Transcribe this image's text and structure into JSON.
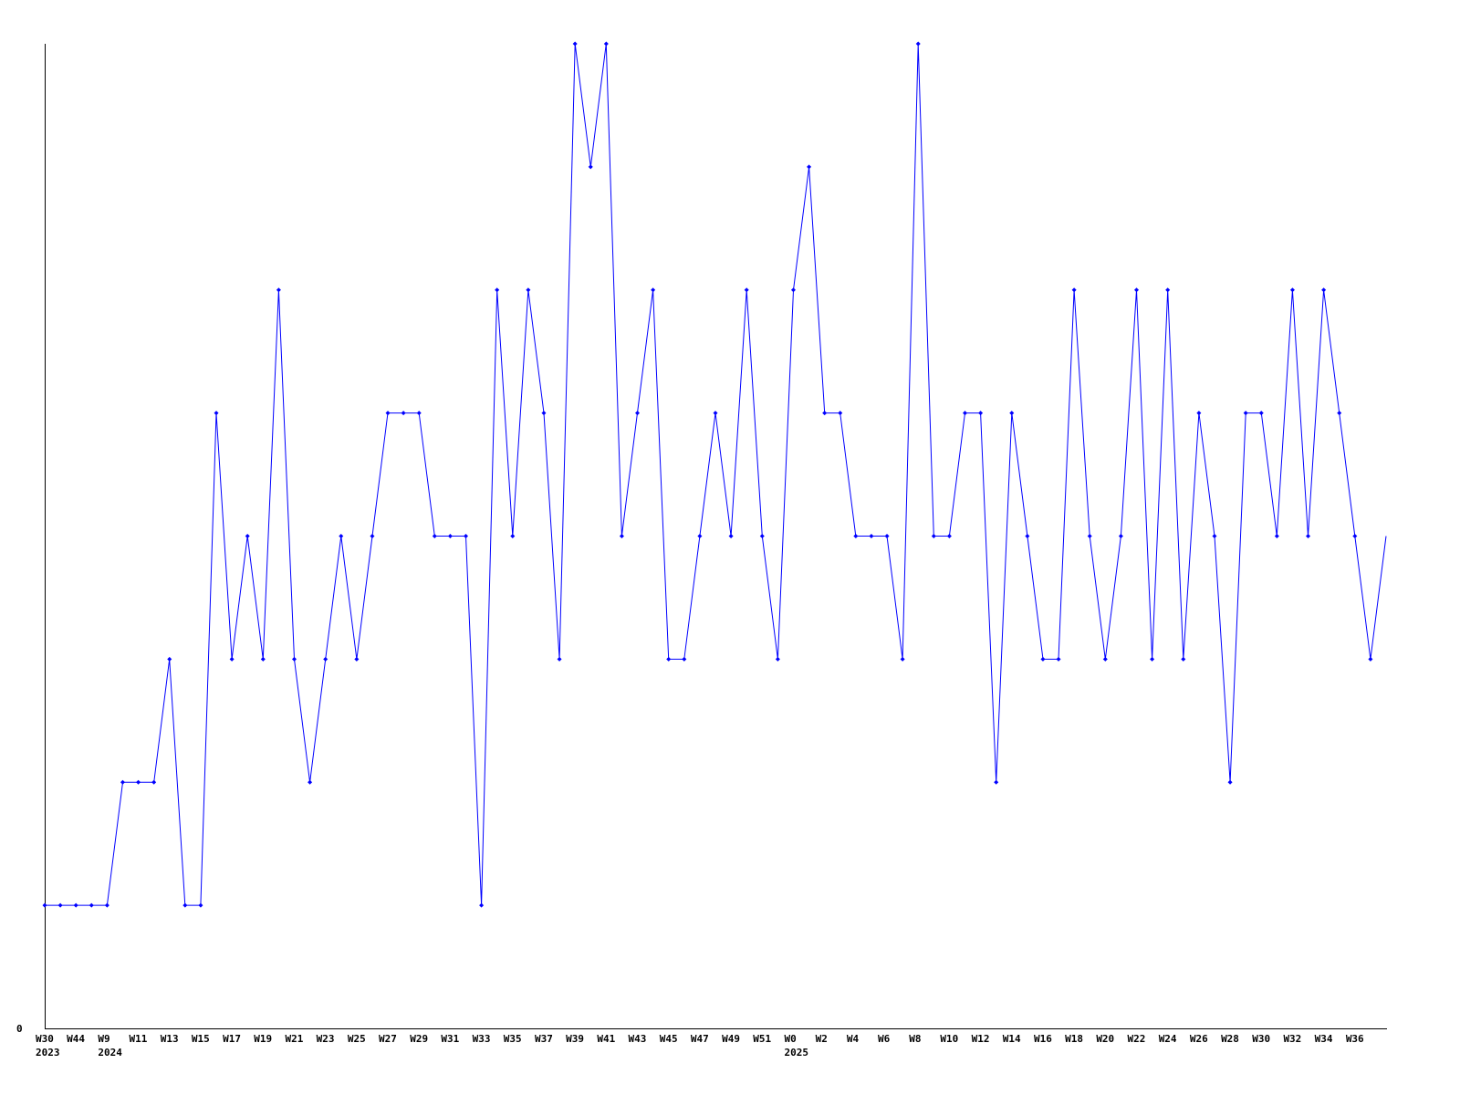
{
  "chart_data": {
    "type": "line",
    "title": "",
    "xlabel": "",
    "ylabel": "",
    "ylim": [
      0,
      8
    ],
    "y_tick_labels": [
      "0"
    ],
    "grid": false,
    "legend": "none",
    "line_color": "#0000ff",
    "values": [
      1,
      1,
      1,
      1,
      1,
      2,
      2,
      2,
      3,
      1,
      1,
      5,
      3,
      4,
      3,
      6,
      3,
      2,
      3,
      4,
      3,
      4,
      5,
      5,
      5,
      4,
      4,
      4,
      1,
      6,
      4,
      6,
      5,
      3,
      8,
      7,
      8,
      4,
      5,
      6,
      3,
      3,
      4,
      5,
      4,
      6,
      4,
      3,
      6,
      7,
      5,
      5,
      4,
      4,
      4,
      3,
      8,
      4,
      4,
      5,
      5,
      2,
      5,
      4,
      3,
      3,
      6,
      4,
      3,
      4,
      6,
      3,
      6,
      3,
      5,
      4,
      2,
      5,
      5,
      4,
      6,
      4,
      6,
      5,
      4,
      3,
      4
    ],
    "x_ticks": [
      {
        "index": 0,
        "label": "W30",
        "year": "2023"
      },
      {
        "index": 2,
        "label": "W44"
      },
      {
        "index": 4,
        "label": "W9",
        "year": "2024"
      },
      {
        "index": 6,
        "label": "W11"
      },
      {
        "index": 8,
        "label": "W13"
      },
      {
        "index": 10,
        "label": "W15"
      },
      {
        "index": 12,
        "label": "W17"
      },
      {
        "index": 14,
        "label": "W19"
      },
      {
        "index": 16,
        "label": "W21"
      },
      {
        "index": 18,
        "label": "W23"
      },
      {
        "index": 20,
        "label": "W25"
      },
      {
        "index": 22,
        "label": "W27"
      },
      {
        "index": 24,
        "label": "W29"
      },
      {
        "index": 26,
        "label": "W31"
      },
      {
        "index": 28,
        "label": "W33"
      },
      {
        "index": 30,
        "label": "W35"
      },
      {
        "index": 32,
        "label": "W37"
      },
      {
        "index": 34,
        "label": "W39"
      },
      {
        "index": 36,
        "label": "W41"
      },
      {
        "index": 38,
        "label": "W43"
      },
      {
        "index": 40,
        "label": "W45"
      },
      {
        "index": 42,
        "label": "W47"
      },
      {
        "index": 44,
        "label": "W49"
      },
      {
        "index": 46,
        "label": "W51"
      },
      {
        "index": 48,
        "label": "W0",
        "year": "2025"
      },
      {
        "index": 50,
        "label": "W2"
      },
      {
        "index": 52,
        "label": "W4"
      },
      {
        "index": 54,
        "label": "W6"
      },
      {
        "index": 56,
        "label": "W8"
      },
      {
        "index": 58,
        "label": "W10"
      },
      {
        "index": 60,
        "label": "W12"
      },
      {
        "index": 62,
        "label": "W14"
      },
      {
        "index": 64,
        "label": "W16"
      },
      {
        "index": 66,
        "label": "W18"
      },
      {
        "index": 68,
        "label": "W20"
      },
      {
        "index": 70,
        "label": "W22"
      },
      {
        "index": 72,
        "label": "W24"
      },
      {
        "index": 74,
        "label": "W26"
      },
      {
        "index": 76,
        "label": "W28"
      },
      {
        "index": 78,
        "label": "W30"
      },
      {
        "index": 80,
        "label": "W32"
      },
      {
        "index": 82,
        "label": "W34"
      },
      {
        "index": 84,
        "label": "W36"
      }
    ]
  }
}
